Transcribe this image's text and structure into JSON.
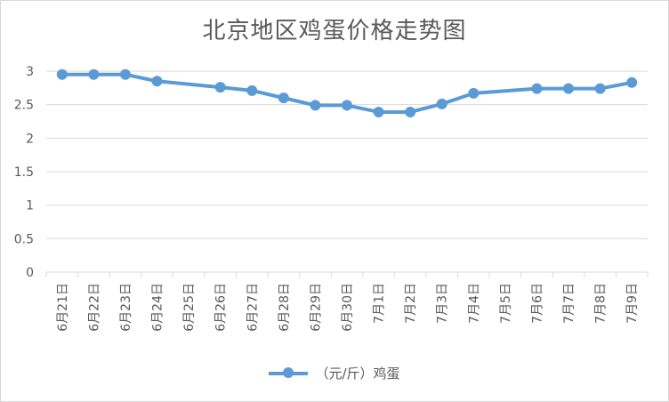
{
  "chart_data": {
    "type": "line",
    "title": "北京地区鸡蛋价格走势图",
    "categories": [
      "6月21日",
      "6月22日",
      "6月23日",
      "6月24日",
      "6月25日",
      "6月26日",
      "6月27日",
      "6月28日",
      "6月29日",
      "6月30日",
      "7月1日",
      "7月2日",
      "7月3日",
      "7月4日",
      "7月5日",
      "7月6日",
      "7月7日",
      "7月8日",
      "7月9日"
    ],
    "series": [
      {
        "name": "（元/斤）鸡蛋",
        "values": [
          2.95,
          2.95,
          2.95,
          2.85,
          null,
          2.76,
          2.71,
          2.6,
          2.49,
          2.49,
          2.39,
          2.39,
          2.51,
          2.67,
          null,
          2.74,
          2.74,
          2.74,
          2.83
        ]
      }
    ],
    "ylim": [
      0,
      3
    ],
    "yticks": [
      "0",
      "0.5",
      "1",
      "1.5",
      "2",
      "2.5",
      "3"
    ],
    "grid": true,
    "legend_position": "bottom",
    "colors": {
      "series": "#5b9bd5",
      "grid": "#d9d9d9",
      "text": "#595959"
    }
  }
}
